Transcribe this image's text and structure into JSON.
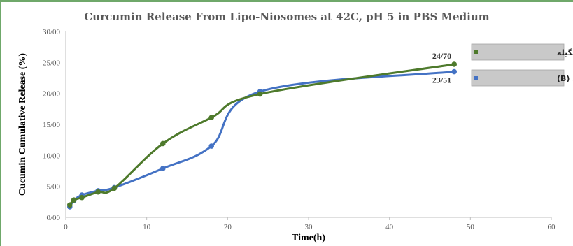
{
  "chart_data": {
    "type": "line",
    "title": "Curcumin Release From Lipo-Niosomes at 42C, pH 5 in PBS Medium",
    "xlabel": "Time(h)",
    "ylabel": "Cucumin Cumulative Release (%)",
    "xlim": [
      0,
      60
    ],
    "ylim": [
      0,
      30
    ],
    "x_ticks": [
      "0",
      "10",
      "20",
      "30",
      "40",
      "50",
      "60"
    ],
    "y_ticks": [
      "0/00",
      "5/00",
      "10/00",
      "15/00",
      "20/00",
      "25/00",
      "30/00"
    ],
    "grid": false,
    "legend_position": "right",
    "series": [
      {
        "name": "فرمولاسیون نهایی (B)",
        "color": "#4472c4",
        "x": [
          0.5,
          1,
          2,
          4,
          6,
          12,
          18,
          24,
          48
        ],
        "y": [
          1.7,
          2.7,
          3.6,
          4.3,
          4.8,
          7.9,
          11.5,
          20.3,
          23.51
        ],
        "end_label": "23/51"
      },
      {
        "name": "فرمولاسیون پگیله",
        "color": "#4e7a2c",
        "x": [
          0.5,
          1,
          2,
          4,
          6,
          12,
          18,
          24,
          48
        ],
        "y": [
          2.0,
          2.8,
          3.2,
          4.1,
          4.7,
          11.9,
          16.1,
          19.9,
          24.7
        ],
        "end_label": "24/70"
      }
    ]
  }
}
